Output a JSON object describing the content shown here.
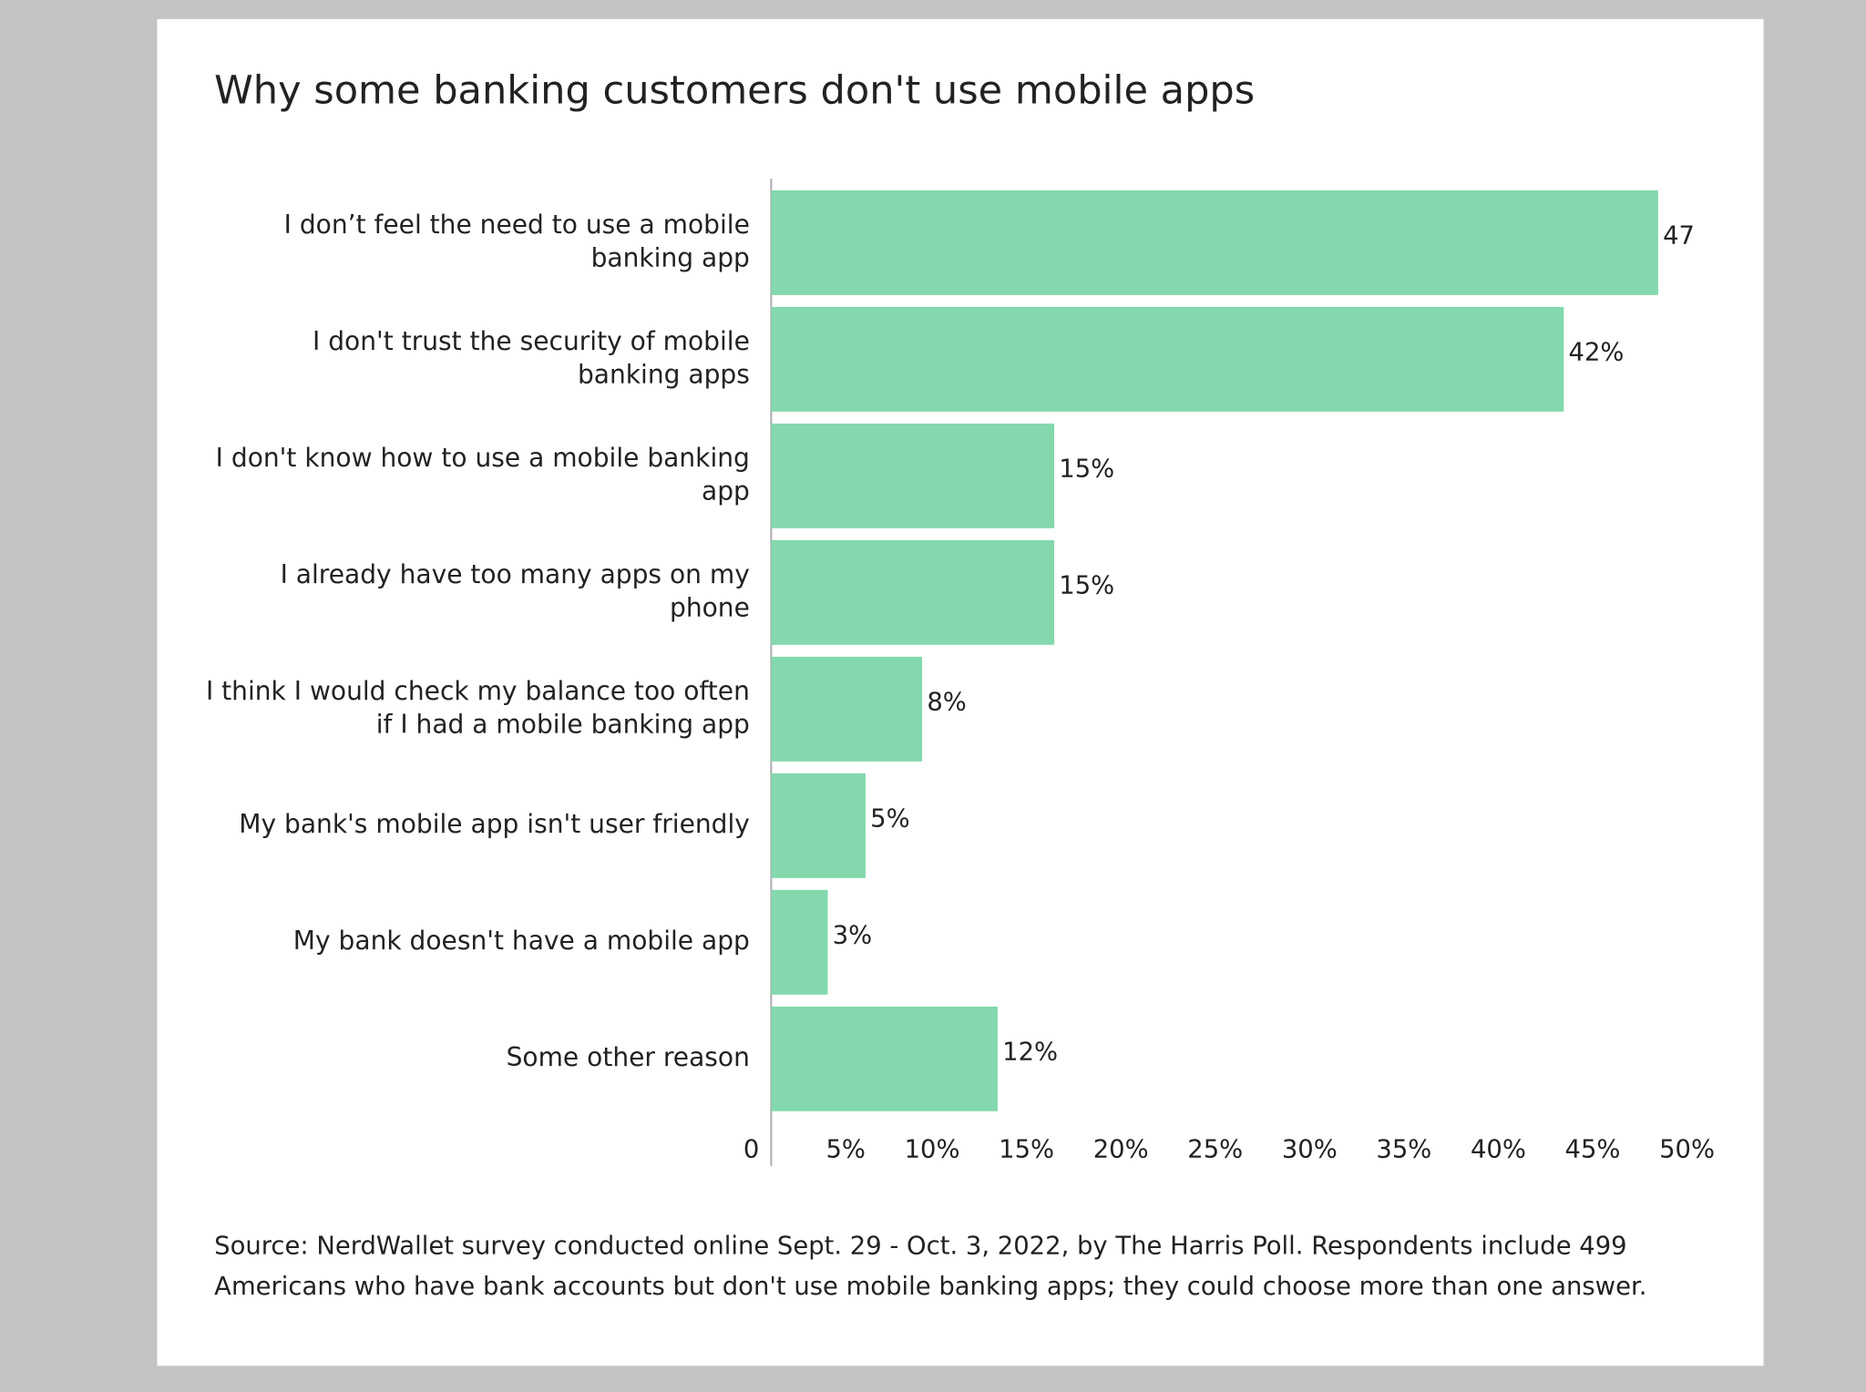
{
  "chart_data": {
    "type": "bar",
    "orientation": "horizontal",
    "title": "Why some banking customers don't use mobile apps",
    "categories": [
      "I don’t feel the need to use a mobile banking app",
      "I don't trust the security of mobile banking apps",
      "I don't know how to use a mobile banking app",
      "I already have too many apps on my phone",
      "I think I would check my balance too often if I had a mobile banking app",
      "My bank's mobile app isn't user friendly",
      "My bank doesn't have a mobile app",
      "Some other reason"
    ],
    "values": [
      47,
      42,
      15,
      15,
      8,
      5,
      3,
      12
    ],
    "value_labels": [
      "47",
      "42%",
      "15%",
      "15%",
      "8%",
      "5%",
      "3%",
      "12%"
    ],
    "color": "#84d8ad",
    "xlim": [
      0,
      50
    ],
    "xticks": [
      0,
      {
        "value": 5,
        "label": "5%"
      },
      {
        "value": 10,
        "label": "10%"
      },
      {
        "value": 15,
        "label": "15%"
      },
      {
        "value": 20,
        "label": "20%"
      },
      {
        "value": 25,
        "label": "25%"
      },
      {
        "value": 30,
        "label": "30%"
      },
      {
        "value": 35,
        "label": "35%"
      },
      {
        "value": 40,
        "label": "40%"
      },
      {
        "value": 45,
        "label": "45%"
      },
      {
        "value": 50,
        "label": "50%"
      }
    ],
    "grid": false,
    "source": "Source: NerdWallet survey conducted online Sept. 29 - Oct. 3, 2022, by The Harris Poll. Respondents include 499 Americans who have bank accounts but don't use mobile banking apps; they could choose more than one answer."
  }
}
